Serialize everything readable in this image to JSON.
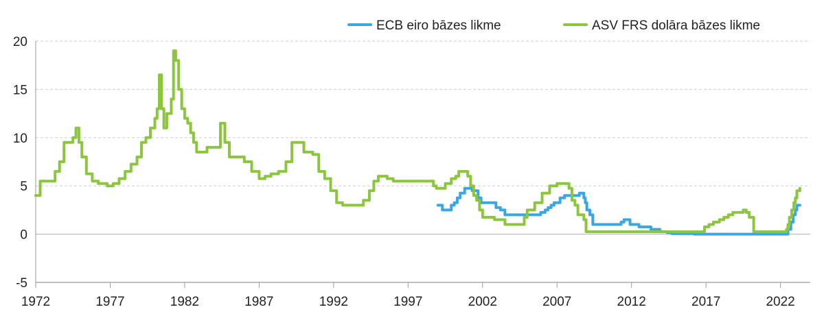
{
  "chart_data": {
    "type": "line",
    "title": "",
    "xlabel": "",
    "ylabel": "",
    "xlim": [
      1972,
      2024
    ],
    "ylim": [
      -5,
      20
    ],
    "grid": true,
    "legend_position": "top-right",
    "x_ticks": [
      "1972",
      "1977",
      "1982",
      "1987",
      "1992",
      "1997",
      "2002",
      "2007",
      "2012",
      "2017",
      "2022"
    ],
    "y_ticks": [
      "20",
      "15",
      "10",
      "5",
      "0",
      "-5"
    ],
    "series": [
      {
        "name": "ECB eiro bāzes likme",
        "color": "#3aa7e4",
        "x": [
          1999.0,
          1999.3,
          1999.9,
          2000.1,
          2000.3,
          2000.5,
          2000.8,
          2001.3,
          2001.7,
          2001.9,
          2002.9,
          2003.2,
          2003.5,
          2005.9,
          2006.2,
          2006.4,
          2006.6,
          2006.8,
          2007.2,
          2007.5,
          2008.5,
          2008.8,
          2008.9,
          2009.0,
          2009.2,
          2009.4,
          2011.3,
          2011.5,
          2011.9,
          2012.5,
          2013.3,
          2013.9,
          2014.4,
          2014.7,
          2015.2,
          2016.2,
          2022.5,
          2022.7,
          2022.85,
          2023.0,
          2023.1,
          2023.3
        ],
        "y": [
          3.0,
          2.5,
          3.0,
          3.25,
          3.75,
          4.25,
          4.75,
          4.5,
          3.75,
          3.25,
          2.75,
          2.5,
          2.0,
          2.25,
          2.5,
          2.75,
          3.0,
          3.25,
          3.75,
          4.0,
          4.25,
          3.75,
          3.25,
          2.5,
          2.0,
          1.0,
          1.25,
          1.5,
          1.0,
          0.75,
          0.5,
          0.25,
          0.15,
          0.05,
          0.05,
          0.0,
          0.5,
          1.25,
          2.0,
          2.5,
          3.0,
          3.0
        ],
        "values": [
          3.0,
          2.5,
          3.0,
          3.25,
          3.75,
          4.25,
          4.75,
          4.5,
          3.75,
          3.25,
          2.75,
          2.5,
          2.0,
          2.25,
          2.5,
          2.75,
          3.0,
          3.25,
          3.75,
          4.0,
          4.25,
          3.75,
          3.25,
          2.5,
          2.0,
          1.0,
          1.25,
          1.5,
          1.0,
          0.75,
          0.5,
          0.25,
          0.15,
          0.05,
          0.05,
          0.0,
          0.5,
          1.25,
          2.0,
          2.5,
          3.0,
          3.0
        ]
      },
      {
        "name": "ASV FRS dolāra bāzes likme",
        "color": "#8cc63f",
        "x": [
          1972.0,
          1972.3,
          1973.0,
          1973.3,
          1973.6,
          1973.9,
          1974.2,
          1974.5,
          1974.7,
          1974.9,
          1975.1,
          1975.4,
          1975.8,
          1976.2,
          1976.5,
          1976.8,
          1977.2,
          1977.6,
          1978.0,
          1978.4,
          1978.8,
          1979.1,
          1979.4,
          1979.7,
          1980.0,
          1980.15,
          1980.3,
          1980.45,
          1980.6,
          1980.8,
          1981.1,
          1981.25,
          1981.4,
          1981.6,
          1981.8,
          1982.0,
          1982.2,
          1982.4,
          1982.6,
          1982.8,
          1983.0,
          1983.5,
          1984.0,
          1984.4,
          1984.7,
          1985.0,
          1985.5,
          1986.0,
          1986.5,
          1987.0,
          1987.4,
          1987.8,
          1988.3,
          1988.8,
          1989.2,
          1989.6,
          1990.0,
          1990.6,
          1991.0,
          1991.4,
          1991.8,
          1992.2,
          1992.6,
          1993.5,
          1994.0,
          1994.4,
          1994.7,
          1995.0,
          1995.6,
          1996.0,
          1997.0,
          1998.0,
          1998.7,
          1998.9,
          1999.5,
          1999.9,
          2000.2,
          2000.4,
          2001.0,
          2001.2,
          2001.4,
          2001.6,
          2001.8,
          2002.0,
          2002.8,
          2003.5,
          2004.5,
          2004.8,
          2005.0,
          2005.5,
          2006.0,
          2006.5,
          2007.0,
          2007.6,
          2007.8,
          2008.0,
          2008.2,
          2008.4,
          2008.8,
          2008.95,
          2015.9,
          2016.9,
          2017.2,
          2017.5,
          2017.9,
          2018.2,
          2018.5,
          2018.8,
          2019.5,
          2019.7,
          2019.9,
          2020.2,
          2022.2,
          2022.4,
          2022.5,
          2022.6,
          2022.75,
          2022.9,
          2023.0,
          2023.1,
          2023.3
        ],
        "y": [
          4.0,
          5.5,
          5.5,
          6.5,
          7.5,
          9.5,
          9.5,
          10.0,
          11.0,
          9.5,
          8.0,
          6.25,
          5.5,
          5.25,
          5.25,
          5.0,
          5.25,
          5.75,
          6.5,
          7.25,
          8.0,
          9.5,
          10.0,
          11.0,
          12.0,
          13.0,
          16.5,
          13.0,
          11.0,
          12.5,
          14.0,
          19.0,
          18.0,
          15.0,
          13.0,
          12.0,
          11.5,
          10.5,
          9.5,
          8.5,
          8.5,
          9.0,
          9.0,
          11.5,
          9.5,
          8.0,
          8.0,
          7.5,
          6.5,
          5.75,
          6.0,
          6.25,
          6.5,
          7.5,
          9.5,
          9.5,
          8.5,
          8.25,
          6.5,
          5.75,
          4.5,
          3.25,
          3.0,
          3.0,
          3.5,
          4.5,
          5.5,
          6.0,
          5.75,
          5.5,
          5.5,
          5.5,
          5.0,
          4.75,
          5.25,
          5.75,
          6.0,
          6.5,
          6.0,
          5.0,
          4.0,
          3.5,
          2.5,
          1.75,
          1.5,
          1.0,
          1.0,
          1.75,
          2.5,
          3.25,
          4.25,
          5.0,
          5.25,
          5.25,
          4.75,
          3.5,
          3.0,
          2.0,
          1.5,
          0.25,
          0.25,
          0.75,
          1.0,
          1.25,
          1.5,
          1.75,
          2.0,
          2.25,
          2.5,
          2.25,
          1.75,
          0.25,
          0.25,
          0.5,
          1.0,
          1.75,
          2.5,
          3.25,
          3.75,
          4.5,
          4.75
        ]
      }
    ]
  }
}
